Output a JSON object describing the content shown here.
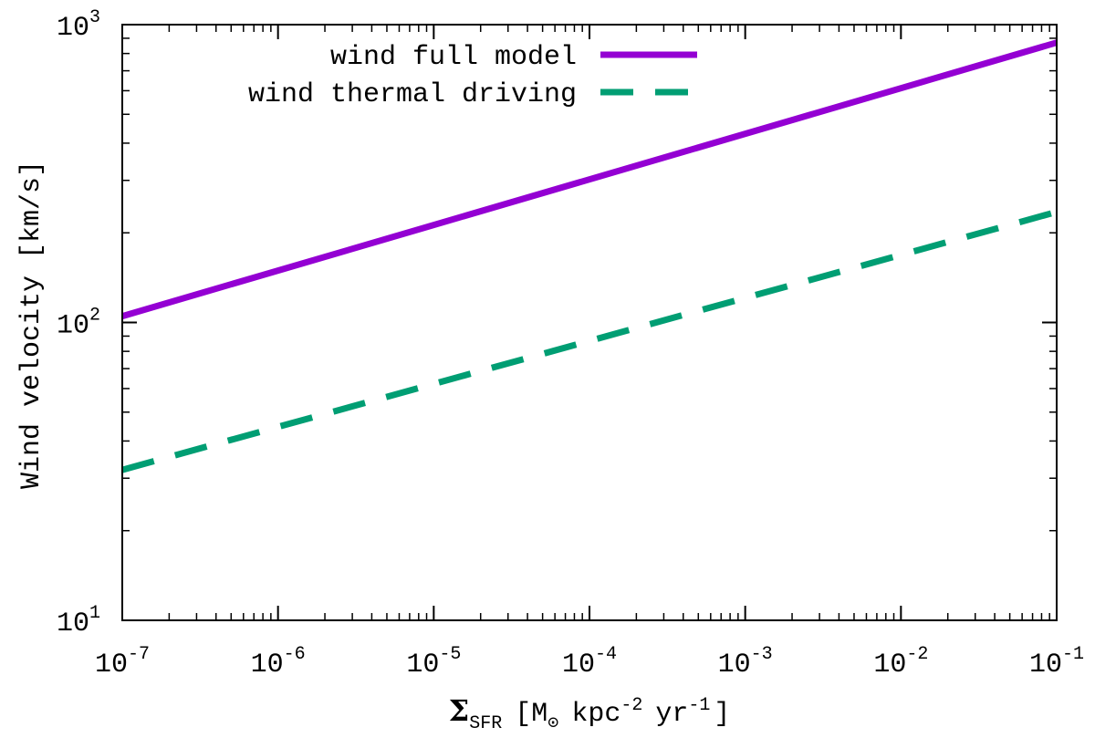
{
  "chart_data": {
    "type": "line",
    "title": "",
    "xlabel": {
      "symbol": "Σ",
      "subscript": "SFR",
      "text_open": "[M",
      "sun_subscript": "⊙",
      "text_kpc": "kpc",
      "kpc_exp": "-2",
      "text_yr": "yr",
      "yr_exp": "-1",
      "text_close": "]"
    },
    "ylabel": "Wind velocity [km/s]",
    "xscale": "log",
    "yscale": "log",
    "xlim": [
      1e-07,
      0.1
    ],
    "ylim": [
      10,
      1000
    ],
    "x_ticks": [
      {
        "base": "10",
        "exp": "-7"
      },
      {
        "base": "10",
        "exp": "-6"
      },
      {
        "base": "10",
        "exp": "-5"
      },
      {
        "base": "10",
        "exp": "-4"
      },
      {
        "base": "10",
        "exp": "-3"
      },
      {
        "base": "10",
        "exp": "-2"
      },
      {
        "base": "10",
        "exp": "-1"
      }
    ],
    "y_ticks": [
      {
        "base": "10",
        "exp": "1"
      },
      {
        "base": "10",
        "exp": "2"
      },
      {
        "base": "10",
        "exp": "3"
      }
    ],
    "grid": false,
    "legend_position": "top-left",
    "series": [
      {
        "name": "wind full model",
        "color": "#9400d3",
        "style": "solid",
        "x": [
          1e-07,
          0.1
        ],
        "y": [
          105,
          870
        ]
      },
      {
        "name": "wind thermal driving",
        "color": "#009e73",
        "style": "dashed",
        "x": [
          1e-07,
          0.1
        ],
        "y": [
          32,
          235
        ]
      }
    ]
  }
}
